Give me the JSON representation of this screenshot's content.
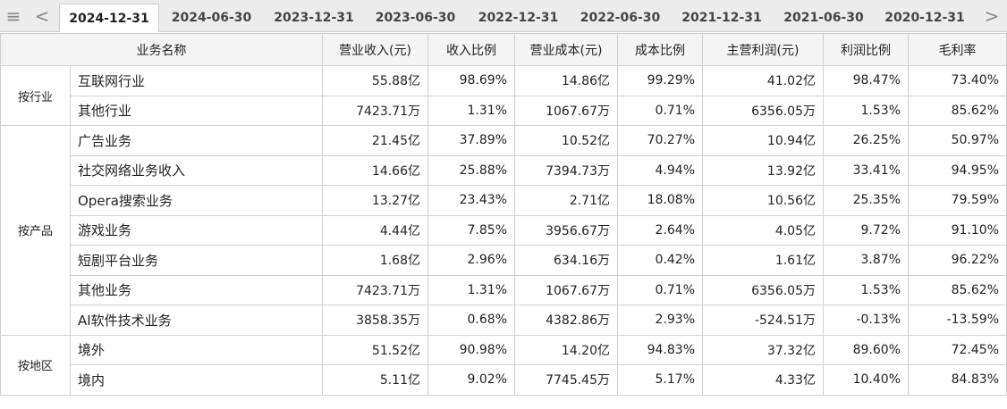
{
  "tabs": {
    "dates": [
      "2024-12-31",
      "2024-06-30",
      "2023-12-31",
      "2023-06-30",
      "2022-12-31",
      "2022-06-30",
      "2021-12-31",
      "2021-06-30",
      "2020-12-31"
    ],
    "active": 0
  },
  "table": {
    "header": [
      "业务名称",
      "营业收入(元)",
      "收入比例",
      "营业成本(元)",
      "成本比例",
      "主营利润(元)",
      "利润比例",
      "毛利率"
    ],
    "groups": [
      {
        "label": "按行业",
        "rows": [
          [
            "互联网行业",
            "55.88亿",
            "98.69%",
            "14.86亿",
            "99.29%",
            "41.02亿",
            "98.47%",
            "73.40%"
          ],
          [
            "其他行业",
            "7423.71万",
            "1.31%",
            "1067.67万",
            "0.71%",
            "6356.05万",
            "1.53%",
            "85.62%"
          ]
        ]
      },
      {
        "label": "按产品",
        "rows": [
          [
            "广告业务",
            "21.45亿",
            "37.89%",
            "10.52亿",
            "70.27%",
            "10.94亿",
            "26.25%",
            "50.97%"
          ],
          [
            "社交网络业务收入",
            "14.66亿",
            "25.88%",
            "7394.73万",
            "4.94%",
            "13.92亿",
            "33.41%",
            "94.95%"
          ],
          [
            "Opera搜索业务",
            "13.27亿",
            "23.43%",
            "2.71亿",
            "18.08%",
            "10.56亿",
            "25.35%",
            "79.59%"
          ],
          [
            "游戏业务",
            "4.44亿",
            "7.85%",
            "3956.67万",
            "2.64%",
            "4.05亿",
            "9.72%",
            "91.10%"
          ],
          [
            "短剧平台业务",
            "1.68亿",
            "2.96%",
            "634.16万",
            "0.42%",
            "1.61亿",
            "3.87%",
            "96.22%"
          ],
          [
            "其他业务",
            "7423.71万",
            "1.31%",
            "1067.67万",
            "0.71%",
            "6356.05万",
            "1.53%",
            "85.62%"
          ],
          [
            "AI软件技术业务",
            "3858.35万",
            "0.68%",
            "4382.86万",
            "2.93%",
            "-524.51万",
            "-0.13%",
            "-13.59%"
          ]
        ]
      },
      {
        "label": "按地区",
        "rows": [
          [
            "境外",
            "51.52亿",
            "90.98%",
            "14.20亿",
            "94.83%",
            "37.32亿",
            "89.60%",
            "72.45%"
          ],
          [
            "境内",
            "5.11亿",
            "9.02%",
            "7745.45万",
            "5.17%",
            "4.33亿",
            "10.40%",
            "84.83%"
          ]
        ]
      }
    ]
  }
}
